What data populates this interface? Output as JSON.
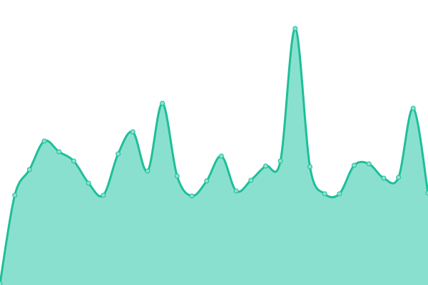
{
  "chart_data": {
    "type": "area",
    "title": "",
    "xlabel": "",
    "ylabel": "",
    "x": [
      0,
      1,
      2,
      3,
      4,
      5,
      6,
      7,
      8,
      9,
      10,
      11,
      12,
      13,
      14,
      15,
      16,
      17,
      18,
      19,
      20,
      21,
      22,
      23,
      24,
      25,
      26,
      27,
      28,
      29
    ],
    "values": [
      2,
      126,
      162,
      202,
      187,
      174,
      143,
      126,
      184,
      215,
      160,
      255,
      153,
      125,
      146,
      181,
      132,
      147,
      167,
      174,
      360,
      166,
      128,
      128,
      168,
      170,
      150,
      151,
      248,
      129
    ],
    "ylim": [
      0,
      400
    ],
    "xlim": [
      0,
      29
    ],
    "grid": false,
    "axes_visible": false,
    "colors": {
      "line": "#1dbf98",
      "fill": "#8ae0cf",
      "marker_fill": "#8ae0cf",
      "marker_stroke": "#1dbf98"
    }
  }
}
